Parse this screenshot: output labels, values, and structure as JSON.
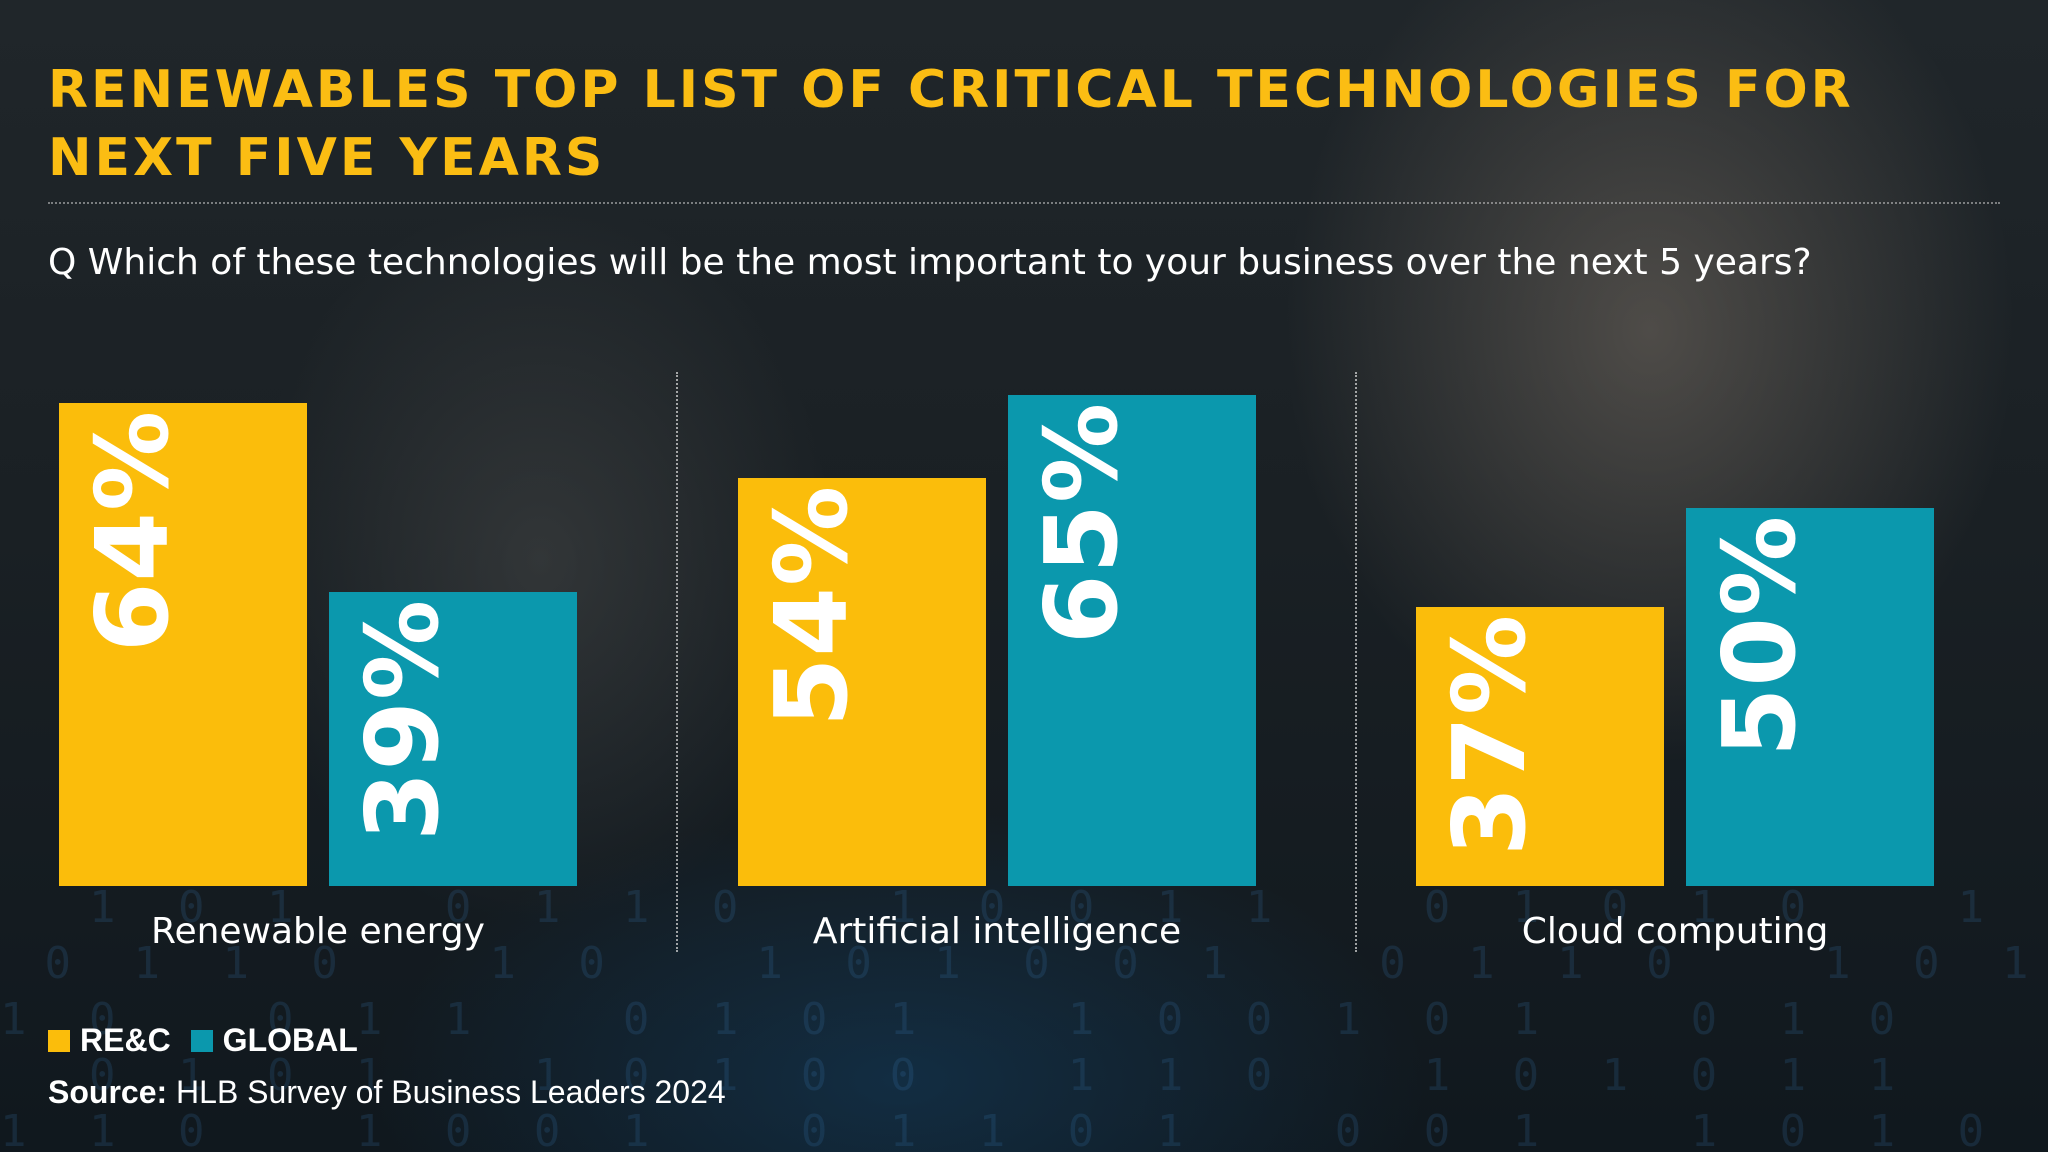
{
  "header": {
    "title_line1": "RENEWABLES TOP LIST OF CRITICAL TECHNOLOGIES FOR",
    "title_line2": "NEXT FIVE YEARS",
    "question": "Q Which of these technologies will be the most important to your business over the next 5 years?"
  },
  "legend": {
    "items": [
      {
        "label": "RE&C",
        "color": "#fbbd0b"
      },
      {
        "label": "GLOBAL",
        "color": "#0b98ad"
      }
    ]
  },
  "footer": {
    "source_label": "Source:",
    "source_text": "HLB Survey of Business Leaders 2024"
  },
  "chart_data": {
    "type": "bar",
    "categories": [
      "Renewable energy",
      "Artificial intelligence",
      "Cloud computing"
    ],
    "series": [
      {
        "name": "RE&C",
        "values": [
          64,
          54,
          37
        ],
        "labels": [
          "64%",
          "54%",
          "37%"
        ],
        "color": "#fbbd0b"
      },
      {
        "name": "GLOBAL",
        "values": [
          39,
          65,
          50
        ],
        "labels": [
          "39%",
          "65%",
          "50%"
        ],
        "color": "#0b98ad"
      }
    ],
    "title": "RENEWABLES TOP LIST OF CRITICAL TECHNOLOGIES FOR NEXT FIVE YEARS",
    "xlabel": "",
    "ylabel": "",
    "ylim": [
      0,
      100
    ],
    "grid": false,
    "legend_position": "bottom-left"
  }
}
